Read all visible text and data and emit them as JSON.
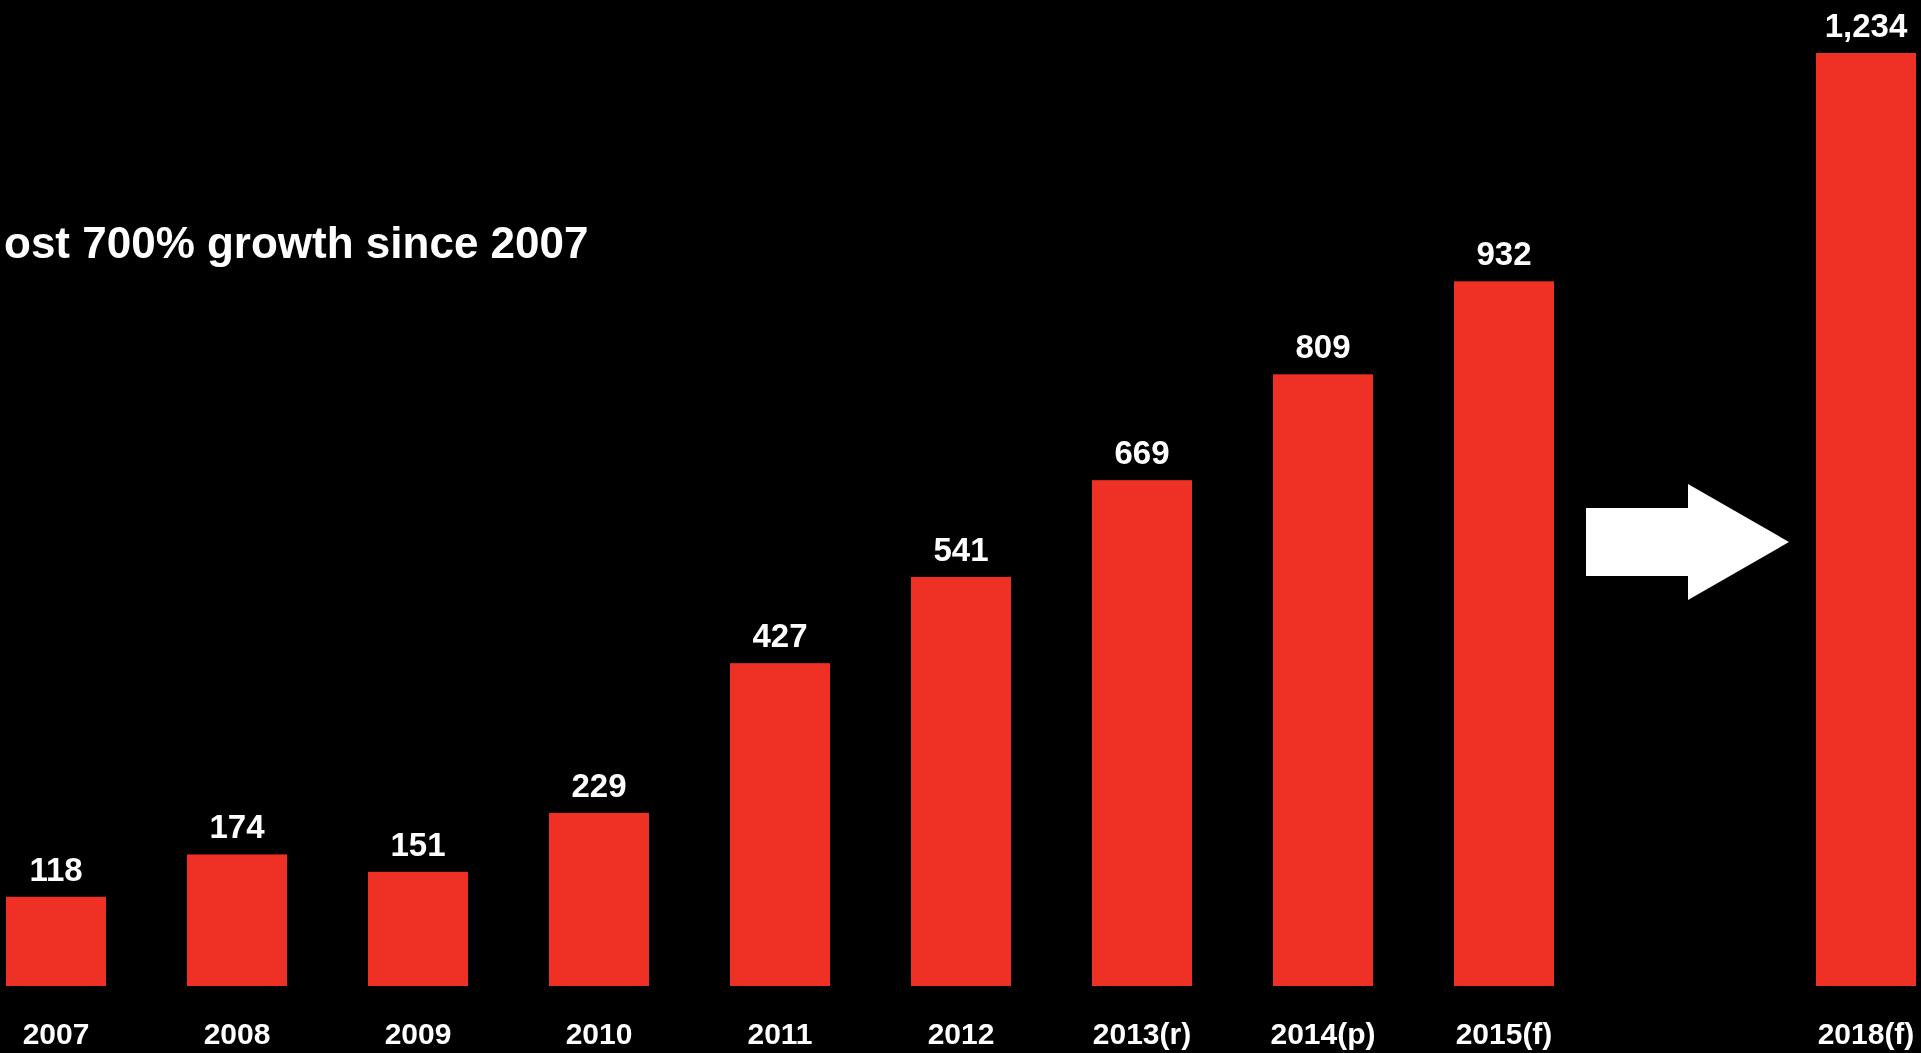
{
  "chart_data": {
    "type": "bar",
    "title": "ost 700% growth since 2007",
    "categories": [
      "2007",
      "2008",
      "2009",
      "2010",
      "2011",
      "2012",
      "2013(r)",
      "2014(p)",
      "2015(f)",
      null,
      "2018(f)"
    ],
    "values": [
      118,
      174,
      151,
      229,
      427,
      541,
      669,
      809,
      932,
      null,
      1234
    ],
    "value_labels": [
      "118",
      "174",
      "151",
      "229",
      "427",
      "541",
      "669",
      "809",
      "932",
      null,
      "1,234"
    ],
    "color": "#ee3124"
  }
}
